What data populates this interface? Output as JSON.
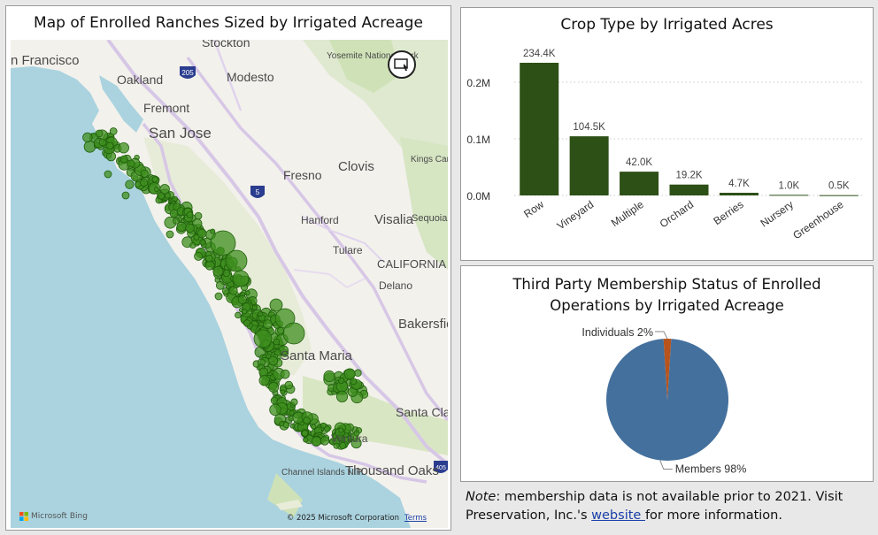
{
  "map": {
    "title": "Map of Enrolled Ranches Sized by Irrigated Acreage",
    "labels": {
      "san_francisco": "n Francisco",
      "oakland": "Oakland",
      "stockton": "Stockton",
      "modesto": "Modesto",
      "yosemite": "Yosemite National Park",
      "fremont": "Fremont",
      "san_jose": "San Jose",
      "fresno": "Fresno",
      "clovis": "Clovis",
      "kings_canyon": "Kings Canyon N.P.",
      "hanford": "Hanford",
      "visalia": "Visalia",
      "sequoia": "Sequoia N.P.",
      "tulare": "Tulare",
      "california": "CALIFORNIA",
      "delano": "Delano",
      "bakersfield": "Bakersfie",
      "santa_maria": "Santa Maria",
      "santa_clarita": "Santa Clarita",
      "thousand_oaks": "Thousand Oaks",
      "channel_islands": "Channel Islands N.P.",
      "ventura": "Ventura",
      "route_205": "205",
      "route_5": "5",
      "route_405": "405"
    },
    "bing_label": "Microsoft Bing",
    "copyright": "© 2025 Microsoft Corporation",
    "terms": "Terms",
    "point_color": "#3f8f1f",
    "point_stroke": "#1f5e0c"
  },
  "chart_data": [
    {
      "type": "bar",
      "title": "Crop Type by Irrigated Acres",
      "categories": [
        "Row",
        "Vineyard",
        "Multiple",
        "Orchard",
        "Berries",
        "Nursery",
        "Greenhouse"
      ],
      "values": [
        234400,
        104500,
        42000,
        19200,
        4700,
        1000,
        500
      ],
      "data_labels": [
        "234.4K",
        "104.5K",
        "42.0K",
        "19.2K",
        "4.7K",
        "1.0K",
        "0.5K"
      ],
      "y_ticks": [
        0,
        100000,
        200000
      ],
      "y_tick_labels": [
        "0.0M",
        "0.1M",
        "0.2M"
      ],
      "ylim": [
        0,
        250000
      ],
      "grid": true,
      "color": "#2d5016"
    },
    {
      "type": "pie",
      "title": "Third Party Membership Status of Enrolled Operations by Irrigated Acreage",
      "slices": [
        {
          "label": "Members 98%",
          "value": 98,
          "color": "#44709d"
        },
        {
          "label": "Individuals 2%",
          "value": 2,
          "color": "#b8531c"
        }
      ]
    }
  ],
  "note": {
    "prefix": "Note",
    "text1": ": membership data is not available prior to 2021. Visit Preservation, Inc.'s ",
    "link": "website ",
    "text2": "for more information."
  }
}
